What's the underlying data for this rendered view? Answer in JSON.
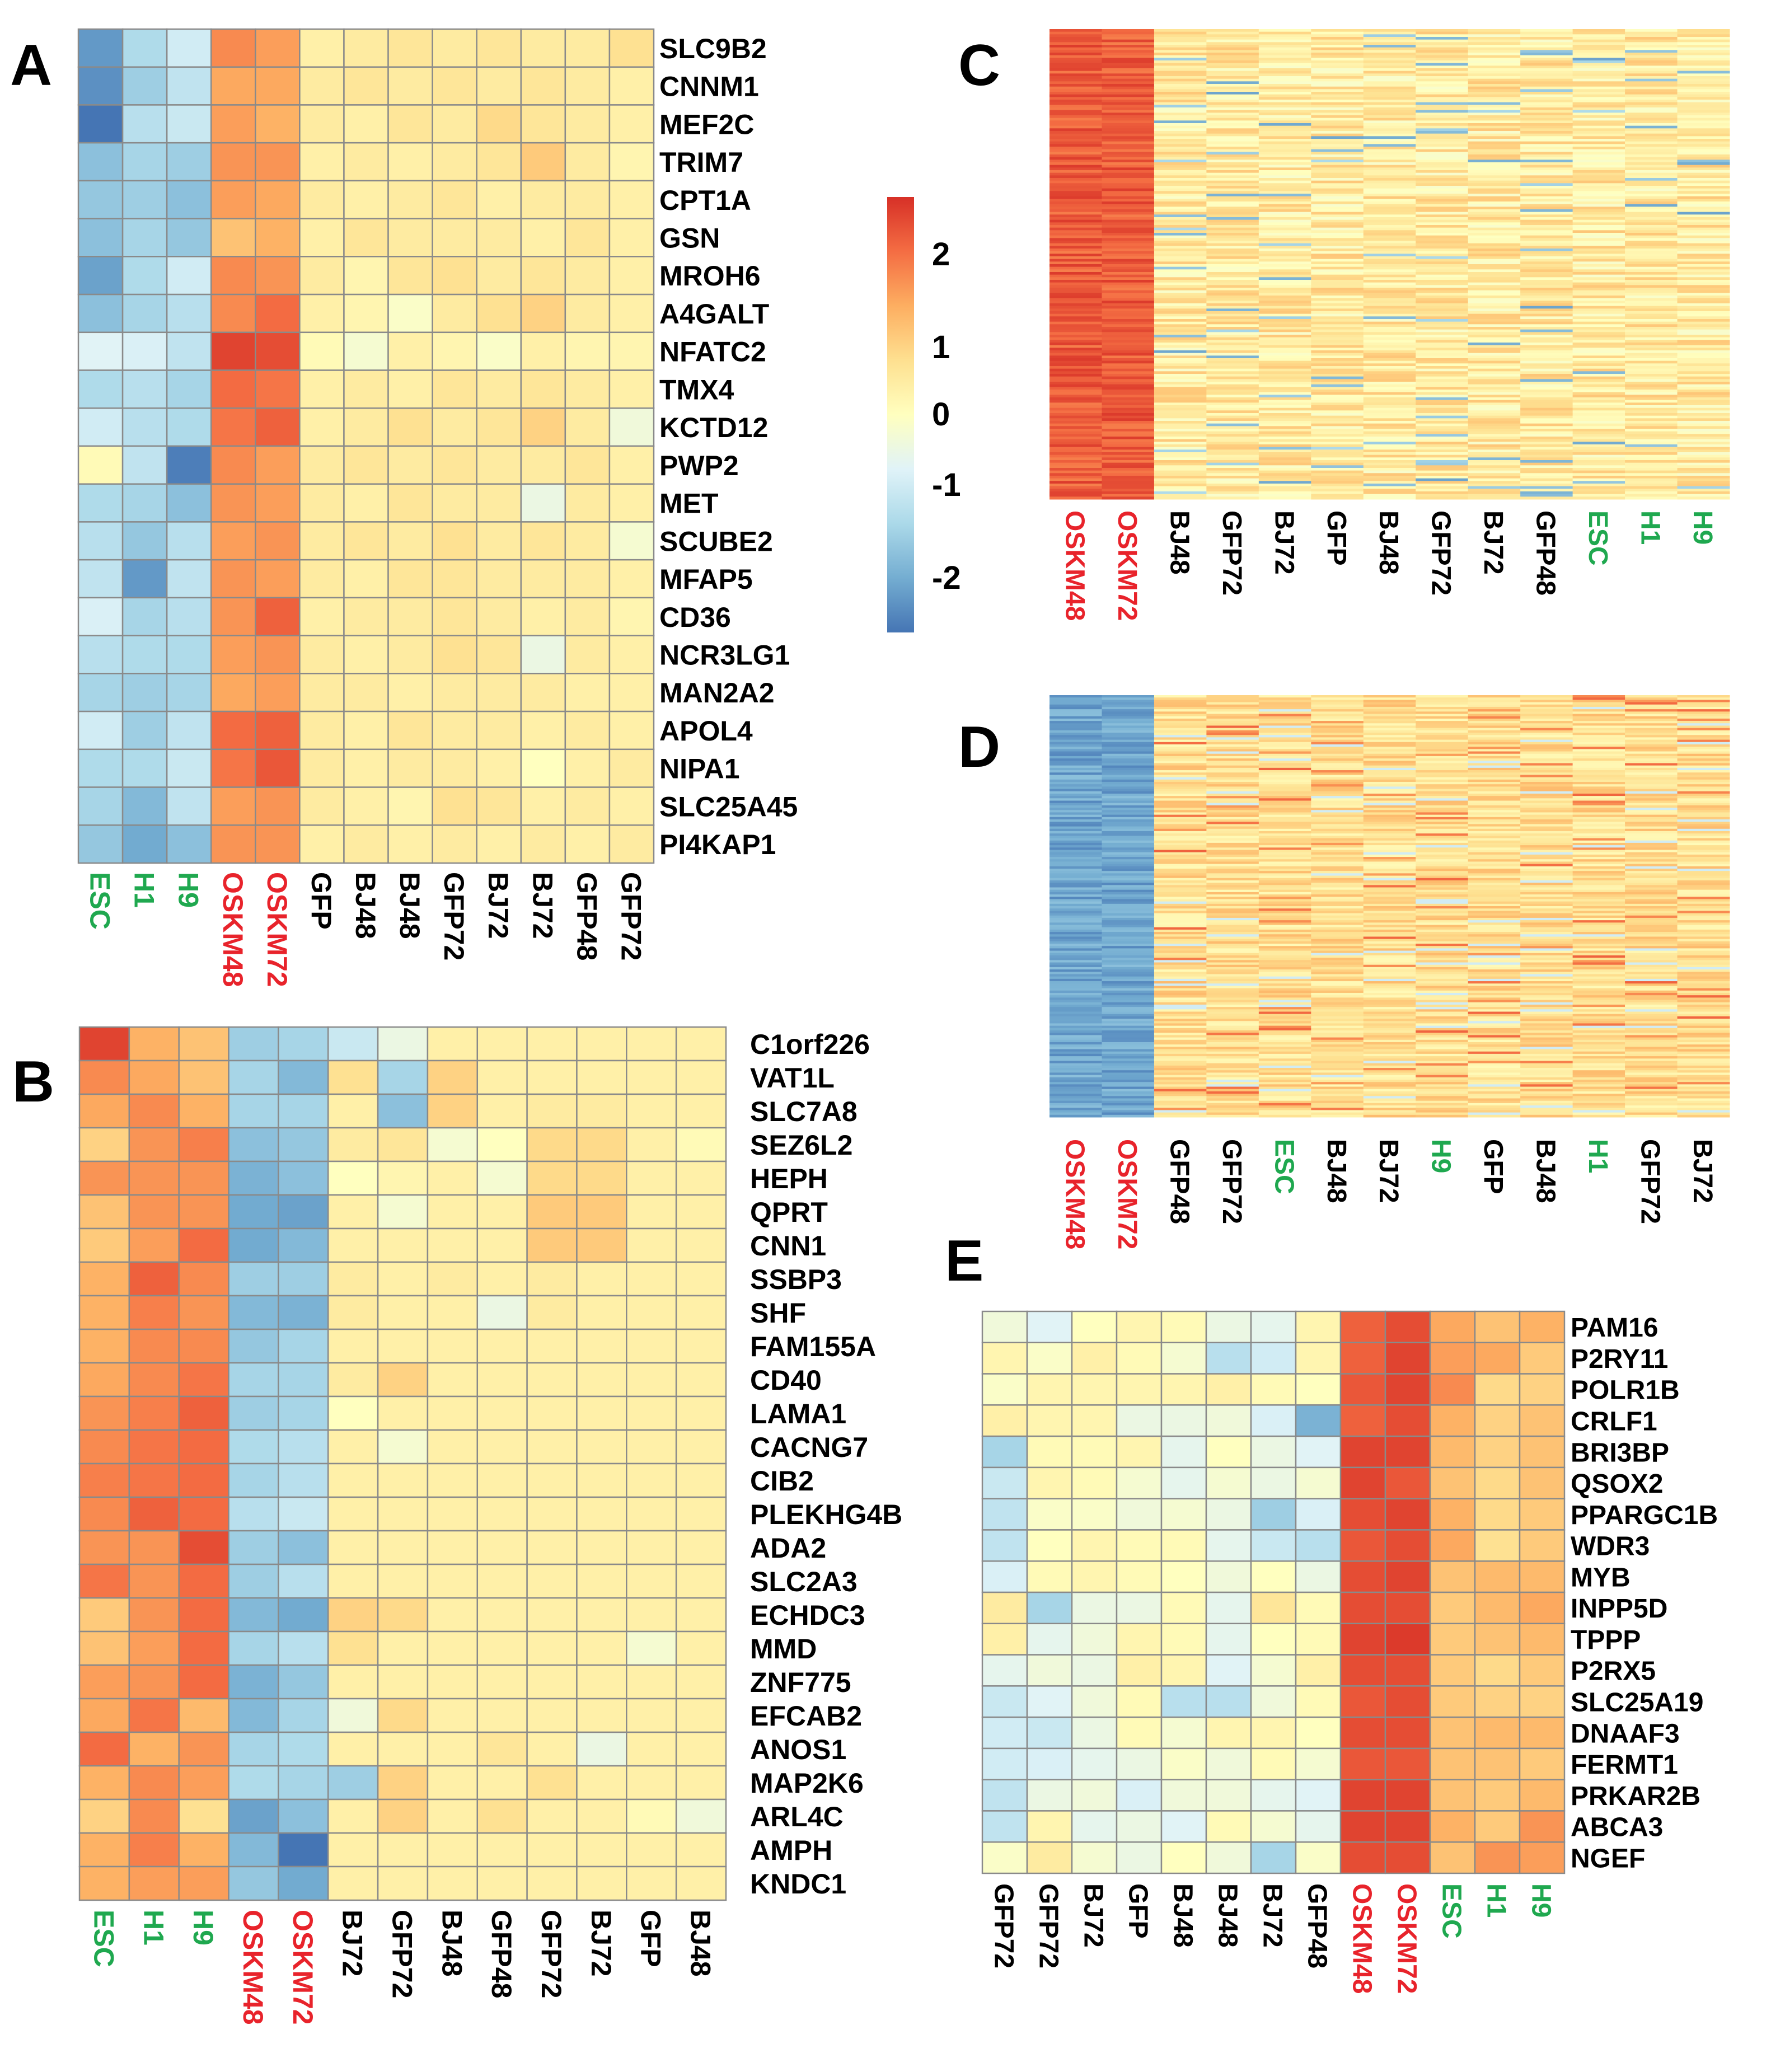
{
  "colors": {
    "low": "#4575b4",
    "mid": "#ffffbf",
    "high": "#d73027",
    "stem_label": "#1fa84f",
    "oskm_label": "#e8232b",
    "control_label": "#000000",
    "grid": "#8a8a8a"
  },
  "colorbar": {
    "ticks": [
      "2",
      "1",
      "0",
      "-1",
      "-2"
    ],
    "tick_values": [
      2,
      1,
      0,
      -1,
      -2
    ],
    "range": [
      -2.5,
      2.5
    ]
  },
  "chart_data": [
    {
      "panel": "A",
      "type": "heatmap",
      "samples": [
        "ESC",
        "H1",
        "H9",
        "OSKM48",
        "OSKM72",
        "GFP",
        "BJ48",
        "BJ48",
        "GFP72",
        "BJ72",
        "BJ72",
        "GFP48",
        "GFP72"
      ],
      "sample_groups": [
        "stem",
        "stem",
        "stem",
        "oskm",
        "oskm",
        "ctrl",
        "ctrl",
        "ctrl",
        "ctrl",
        "ctrl",
        "ctrl",
        "ctrl",
        "ctrl"
      ],
      "genes": [
        "SLC9B2",
        "CNNM1",
        "MEF2C",
        "TRIM7",
        "CPT1A",
        "GSN",
        "MROH6",
        "A4GALT",
        "NFATC2",
        "TMX4",
        "KCTD12",
        "PWP2",
        "MET",
        "SCUBE2",
        "MFAP5",
        "CD36",
        "NCR3LG1",
        "MAN2A2",
        "APOL4",
        "NIPA1",
        "SLC25A45",
        "PI4KAP1"
      ],
      "values": [
        [
          -2.1,
          -1.2,
          -0.8,
          1.6,
          1.4,
          0.3,
          0.4,
          0.5,
          0.4,
          0.5,
          0.4,
          0.4,
          0.6
        ],
        [
          -2.2,
          -1.4,
          -1.0,
          1.3,
          1.3,
          0.4,
          0.5,
          0.4,
          0.5,
          0.4,
          0.5,
          0.4,
          0.3
        ],
        [
          -2.5,
          -1.1,
          -0.9,
          1.4,
          1.2,
          0.4,
          0.3,
          0.5,
          0.4,
          0.7,
          0.5,
          0.4,
          0.3
        ],
        [
          -1.6,
          -1.3,
          -1.4,
          1.5,
          1.5,
          0.3,
          0.4,
          0.3,
          0.4,
          0.5,
          0.9,
          0.4,
          0.2
        ],
        [
          -1.5,
          -1.4,
          -1.6,
          1.4,
          1.3,
          0.4,
          0.3,
          0.4,
          0.5,
          0.3,
          0.4,
          0.4,
          0.3
        ],
        [
          -1.6,
          -1.3,
          -1.5,
          1.0,
          1.2,
          0.3,
          0.5,
          0.4,
          0.4,
          0.4,
          0.3,
          0.5,
          0.3
        ],
        [
          -2.0,
          -1.2,
          -0.8,
          1.6,
          1.5,
          0.4,
          0.2,
          0.5,
          0.6,
          0.4,
          0.5,
          0.4,
          0.3
        ],
        [
          -1.6,
          -1.3,
          -1.1,
          1.6,
          1.9,
          0.3,
          0.2,
          -0.1,
          0.4,
          0.6,
          0.8,
          0.4,
          0.3
        ],
        [
          -0.6,
          -0.7,
          -1.0,
          2.3,
          2.2,
          0.1,
          -0.2,
          0.3,
          0.2,
          -0.1,
          0.3,
          0.2,
          0.2
        ],
        [
          -1.2,
          -1.1,
          -1.3,
          1.9,
          1.8,
          0.3,
          0.4,
          0.3,
          0.5,
          0.4,
          0.5,
          0.4,
          0.3
        ],
        [
          -0.8,
          -1.1,
          -1.2,
          1.8,
          2.0,
          0.3,
          0.4,
          0.6,
          0.4,
          0.5,
          0.8,
          0.4,
          -0.3
        ],
        [
          0.1,
          -1.0,
          -2.4,
          1.6,
          1.4,
          0.4,
          0.5,
          0.4,
          0.5,
          0.4,
          0.4,
          0.5,
          0.3
        ],
        [
          -1.2,
          -1.3,
          -1.6,
          1.5,
          1.4,
          0.4,
          0.3,
          0.5,
          0.4,
          0.4,
          -0.4,
          0.4,
          0.3
        ],
        [
          -1.1,
          -1.5,
          -1.1,
          1.4,
          1.5,
          0.4,
          0.5,
          0.4,
          0.6,
          0.4,
          0.5,
          0.4,
          -0.2
        ],
        [
          -1.0,
          -2.1,
          -1.0,
          1.5,
          1.4,
          0.4,
          0.3,
          0.5,
          0.5,
          0.4,
          0.4,
          0.4,
          0.3
        ],
        [
          -0.7,
          -1.3,
          -1.1,
          1.5,
          2.0,
          0.3,
          0.4,
          0.4,
          0.5,
          0.4,
          0.3,
          0.4,
          0.2
        ],
        [
          -1.1,
          -1.2,
          -1.2,
          1.4,
          1.5,
          0.4,
          0.3,
          0.4,
          0.6,
          0.5,
          -0.4,
          0.4,
          0.3
        ],
        [
          -1.3,
          -1.4,
          -1.3,
          1.3,
          1.4,
          0.4,
          0.4,
          0.3,
          0.4,
          0.4,
          0.4,
          0.3,
          0.3
        ],
        [
          -0.8,
          -1.4,
          -1.0,
          1.9,
          2.0,
          0.4,
          0.3,
          0.5,
          0.4,
          0.4,
          0.3,
          0.4,
          0.3
        ],
        [
          -1.2,
          -1.2,
          -0.9,
          1.8,
          2.1,
          0.4,
          0.3,
          0.4,
          0.4,
          0.3,
          0.0,
          0.3,
          0.4
        ],
        [
          -1.3,
          -1.7,
          -1.0,
          1.4,
          1.5,
          0.4,
          0.3,
          0.2,
          0.6,
          0.5,
          0.3,
          0.4,
          0.3
        ],
        [
          -1.5,
          -1.9,
          -1.6,
          1.5,
          1.5,
          0.3,
          0.4,
          0.3,
          0.4,
          0.3,
          0.4,
          0.3,
          0.4
        ]
      ]
    },
    {
      "panel": "B",
      "type": "heatmap",
      "samples": [
        "ESC",
        "H1",
        "H9",
        "OSKM48",
        "OSKM72",
        "BJ72",
        "GFP72",
        "BJ48",
        "GFP48",
        "GFP72",
        "BJ72",
        "GFP",
        "BJ48"
      ],
      "sample_groups": [
        "stem",
        "stem",
        "stem",
        "oskm",
        "oskm",
        "ctrl",
        "ctrl",
        "ctrl",
        "ctrl",
        "ctrl",
        "ctrl",
        "ctrl",
        "ctrl"
      ],
      "genes": [
        "C1orf226",
        "VAT1L",
        "SLC7A8",
        "SEZ6L2",
        "HEPH",
        "QPRT",
        "CNN1",
        "SSBP3",
        "SHF",
        "FAM155A",
        "CD40",
        "LAMA1",
        "CACNG7",
        "CIB2",
        "PLEKHG4B",
        "ADA2",
        "SLC2A3",
        "ECHDC3",
        "MMD",
        "ZNF775",
        "EFCAB2",
        "ANOS1",
        "MAP2K6",
        "ARL4C",
        "AMPH",
        "KNDC1"
      ],
      "values": [
        [
          2.3,
          1.2,
          1.0,
          -1.4,
          -1.3,
          -0.9,
          -0.4,
          0.3,
          0.3,
          0.3,
          0.3,
          0.3,
          0.3
        ],
        [
          1.6,
          1.3,
          1.0,
          -1.3,
          -1.7,
          0.6,
          -1.3,
          0.8,
          0.3,
          0.3,
          0.3,
          0.3,
          0.3
        ],
        [
          1.3,
          1.6,
          1.2,
          -1.3,
          -1.3,
          0.3,
          -1.6,
          0.8,
          0.3,
          0.4,
          0.4,
          0.3,
          0.3
        ],
        [
          0.8,
          1.5,
          1.7,
          -1.6,
          -1.5,
          0.4,
          0.5,
          -0.2,
          0.0,
          0.7,
          0.7,
          0.3,
          0.1
        ],
        [
          1.5,
          1.5,
          1.5,
          -1.8,
          -1.6,
          0.0,
          0.2,
          0.3,
          -0.2,
          0.7,
          0.7,
          0.3,
          0.3
        ],
        [
          1.0,
          1.5,
          1.5,
          -1.9,
          -2.0,
          0.3,
          -0.2,
          0.3,
          0.3,
          0.9,
          0.9,
          0.3,
          0.3
        ],
        [
          0.9,
          1.4,
          1.9,
          -1.9,
          -1.7,
          0.3,
          0.3,
          0.3,
          0.3,
          0.9,
          0.9,
          0.3,
          0.3
        ],
        [
          1.2,
          2.0,
          1.6,
          -1.4,
          -1.4,
          0.4,
          0.3,
          0.4,
          0.3,
          0.4,
          0.3,
          0.3,
          0.3
        ],
        [
          1.2,
          1.7,
          1.5,
          -1.7,
          -1.8,
          0.4,
          0.3,
          0.3,
          -0.4,
          0.4,
          0.3,
          0.3,
          0.3
        ],
        [
          1.2,
          1.6,
          1.6,
          -1.5,
          -1.3,
          0.3,
          0.3,
          0.3,
          0.3,
          0.3,
          0.3,
          0.3,
          0.3
        ],
        [
          1.3,
          1.6,
          1.8,
          -1.3,
          -1.3,
          0.4,
          0.8,
          0.3,
          0.3,
          0.3,
          0.3,
          0.3,
          0.3
        ],
        [
          1.5,
          1.7,
          2.0,
          -1.4,
          -1.3,
          0.0,
          0.3,
          0.3,
          0.3,
          0.3,
          0.3,
          0.3,
          0.3
        ],
        [
          1.6,
          1.8,
          1.9,
          -1.2,
          -1.1,
          0.3,
          -0.2,
          0.3,
          0.3,
          0.3,
          0.3,
          0.3,
          0.3
        ],
        [
          1.7,
          1.8,
          1.9,
          -1.3,
          -1.1,
          0.3,
          0.3,
          0.3,
          0.3,
          0.3,
          0.3,
          0.3,
          0.3
        ],
        [
          1.6,
          2.0,
          1.9,
          -1.1,
          -0.9,
          0.3,
          0.3,
          0.3,
          0.3,
          0.3,
          0.3,
          0.3,
          0.3
        ],
        [
          1.5,
          1.5,
          2.2,
          -1.4,
          -1.6,
          0.3,
          0.3,
          0.3,
          0.3,
          0.3,
          0.3,
          0.3,
          0.3
        ],
        [
          1.8,
          1.5,
          1.9,
          -1.4,
          -1.1,
          0.3,
          0.3,
          0.3,
          0.3,
          0.3,
          0.3,
          0.3,
          0.3
        ],
        [
          0.9,
          1.5,
          1.9,
          -1.7,
          -1.9,
          0.8,
          0.7,
          0.3,
          0.3,
          0.3,
          0.3,
          0.3,
          0.3
        ],
        [
          1.0,
          1.4,
          1.9,
          -1.3,
          -1.1,
          0.6,
          0.3,
          0.3,
          0.3,
          0.3,
          0.3,
          -0.2,
          0.3
        ],
        [
          1.4,
          1.5,
          1.9,
          -1.8,
          -1.5,
          0.3,
          0.3,
          0.3,
          0.3,
          0.3,
          0.3,
          0.3,
          0.3
        ],
        [
          1.3,
          1.8,
          1.1,
          -1.7,
          -1.3,
          -0.3,
          0.7,
          0.3,
          0.3,
          0.3,
          0.3,
          0.3,
          0.3
        ],
        [
          1.9,
          1.2,
          1.5,
          -1.3,
          -1.2,
          0.3,
          0.3,
          0.3,
          0.5,
          0.3,
          -0.4,
          0.3,
          0.3
        ],
        [
          1.2,
          1.6,
          1.4,
          -1.2,
          -1.3,
          -1.4,
          0.8,
          0.3,
          0.3,
          0.6,
          0.3,
          0.3,
          0.3
        ],
        [
          0.8,
          1.6,
          0.6,
          -2.0,
          -1.6,
          0.3,
          0.8,
          0.3,
          0.6,
          0.3,
          0.3,
          0.1,
          -0.3
        ],
        [
          1.2,
          1.7,
          1.2,
          -1.7,
          -2.6,
          0.3,
          0.3,
          0.3,
          0.3,
          0.3,
          0.3,
          0.3,
          0.3
        ],
        [
          1.2,
          1.4,
          1.4,
          -1.5,
          -1.9,
          0.3,
          0.3,
          0.3,
          0.3,
          0.3,
          0.3,
          0.3,
          0.3
        ]
      ]
    },
    {
      "panel": "C",
      "type": "heatmap",
      "samples": [
        "OSKM48",
        "OSKM72",
        "BJ48",
        "GFP72",
        "BJ72",
        "GFP",
        "BJ48",
        "GFP72",
        "BJ72",
        "GFP48",
        "ESC",
        "H1",
        "H9"
      ],
      "sample_groups": [
        "oskm",
        "oskm",
        "ctrl",
        "ctrl",
        "ctrl",
        "ctrl",
        "ctrl",
        "ctrl",
        "ctrl",
        "ctrl",
        "stem",
        "stem",
        "stem"
      ],
      "genes": [],
      "rows": 180
    },
    {
      "panel": "D",
      "type": "heatmap",
      "samples": [
        "OSKM48",
        "OSKM72",
        "GFP48",
        "GFP72",
        "ESC",
        "BJ48",
        "BJ72",
        "H9",
        "GFP",
        "BJ48",
        "H1",
        "GFP72",
        "BJ72"
      ],
      "sample_groups": [
        "oskm",
        "oskm",
        "ctrl",
        "ctrl",
        "stem",
        "ctrl",
        "ctrl",
        "stem",
        "ctrl",
        "ctrl",
        "stem",
        "ctrl",
        "ctrl"
      ],
      "genes": [],
      "rows": 180
    },
    {
      "panel": "E",
      "type": "heatmap",
      "samples": [
        "GFP72",
        "GFP72",
        "BJ72",
        "GFP",
        "BJ48",
        "BJ48",
        "BJ72",
        "GFP48",
        "OSKM48",
        "OSKM72",
        "ESC",
        "H1",
        "H9"
      ],
      "sample_groups": [
        "ctrl",
        "ctrl",
        "ctrl",
        "ctrl",
        "ctrl",
        "ctrl",
        "ctrl",
        "ctrl",
        "oskm",
        "oskm",
        "stem",
        "stem",
        "stem"
      ],
      "genes": [
        "PAM16",
        "P2RY11",
        "POLR1B",
        "CRLF1",
        "BRI3BP",
        "QSOX2",
        "PPARGC1B",
        "WDR3",
        "MYB",
        "INPP5D",
        "TPPP",
        "P2RX5",
        "SLC25A19",
        "DNAAF3",
        "FERMT1",
        "PRKAR2B",
        "ABCA3",
        "NGEF"
      ],
      "values": [
        [
          -0.3,
          -0.6,
          0.0,
          0.2,
          0.1,
          -0.4,
          -0.5,
          0.2,
          2.0,
          2.2,
          1.3,
          1.0,
          1.2
        ],
        [
          0.2,
          -0.1,
          0.3,
          0.1,
          -0.2,
          -1.1,
          -0.8,
          0.2,
          2.0,
          2.3,
          1.4,
          1.3,
          0.9
        ],
        [
          -0.1,
          0.2,
          0.2,
          0.2,
          0.2,
          0.3,
          0.1,
          0.0,
          2.1,
          2.3,
          1.6,
          0.7,
          0.8
        ],
        [
          0.3,
          0.2,
          0.2,
          -0.4,
          -0.4,
          -0.3,
          -0.7,
          -1.8,
          2.0,
          2.2,
          1.2,
          0.8,
          1.0
        ],
        [
          -1.3,
          0.1,
          0.1,
          0.2,
          -0.5,
          0.0,
          -0.4,
          -0.6,
          2.3,
          2.3,
          1.1,
          0.8,
          1.0
        ],
        [
          -0.9,
          0.2,
          0.1,
          -0.2,
          -0.5,
          -0.2,
          -0.4,
          -0.2,
          2.3,
          2.1,
          1.0,
          0.7,
          1.0
        ],
        [
          -1.0,
          -0.1,
          -0.1,
          -0.3,
          -0.2,
          -0.4,
          -1.4,
          -0.7,
          2.2,
          2.3,
          1.2,
          0.7,
          0.9
        ],
        [
          -1.0,
          0.0,
          0.2,
          0.1,
          0.1,
          -0.5,
          -0.9,
          -1.1,
          2.1,
          2.2,
          1.3,
          0.6,
          0.9
        ],
        [
          -0.7,
          0.1,
          0.2,
          0.1,
          0.0,
          -0.3,
          0.0,
          -0.4,
          2.2,
          2.3,
          1.0,
          1.1,
          1.1
        ],
        [
          0.4,
          -1.3,
          -0.4,
          -0.4,
          0.1,
          -0.5,
          0.5,
          0.1,
          2.2,
          2.2,
          0.9,
          1.1,
          1.3
        ],
        [
          0.3,
          -0.5,
          -0.3,
          0.2,
          0.1,
          -0.5,
          0.0,
          0.1,
          2.3,
          2.4,
          0.9,
          1.0,
          1.1
        ],
        [
          -0.5,
          -0.3,
          -0.4,
          0.3,
          0.2,
          -0.6,
          -0.2,
          0.3,
          2.2,
          2.2,
          0.9,
          0.7,
          0.9
        ],
        [
          -0.9,
          -0.6,
          -0.3,
          0.1,
          -1.1,
          -1.1,
          -0.3,
          0.1,
          2.1,
          2.2,
          0.9,
          0.8,
          0.8
        ],
        [
          -0.8,
          -0.9,
          -0.4,
          0.1,
          -0.2,
          0.2,
          0.2,
          0.0,
          2.2,
          2.2,
          1.0,
          1.1,
          1.1
        ],
        [
          -0.8,
          -0.7,
          -0.5,
          -0.4,
          -0.1,
          -0.3,
          0.1,
          -0.2,
          2.1,
          2.1,
          1.0,
          1.0,
          0.9
        ],
        [
          -1.0,
          -0.4,
          -0.3,
          -0.7,
          -0.3,
          -0.3,
          -0.5,
          -0.6,
          2.3,
          2.3,
          1.0,
          0.9,
          1.1
        ],
        [
          -1.0,
          0.2,
          -0.5,
          -0.4,
          -0.6,
          0.1,
          -0.2,
          -0.5,
          2.3,
          2.3,
          1.2,
          0.9,
          1.5
        ],
        [
          -0.1,
          0.4,
          -0.2,
          -0.4,
          0.0,
          -0.3,
          -1.3,
          -0.1,
          2.2,
          2.2,
          1.0,
          1.5,
          1.4
        ]
      ]
    }
  ],
  "panels": {
    "A": {
      "label": "A"
    },
    "B": {
      "label": "B"
    },
    "C": {
      "label": "C"
    },
    "D": {
      "label": "D"
    },
    "E": {
      "label": "E"
    }
  }
}
